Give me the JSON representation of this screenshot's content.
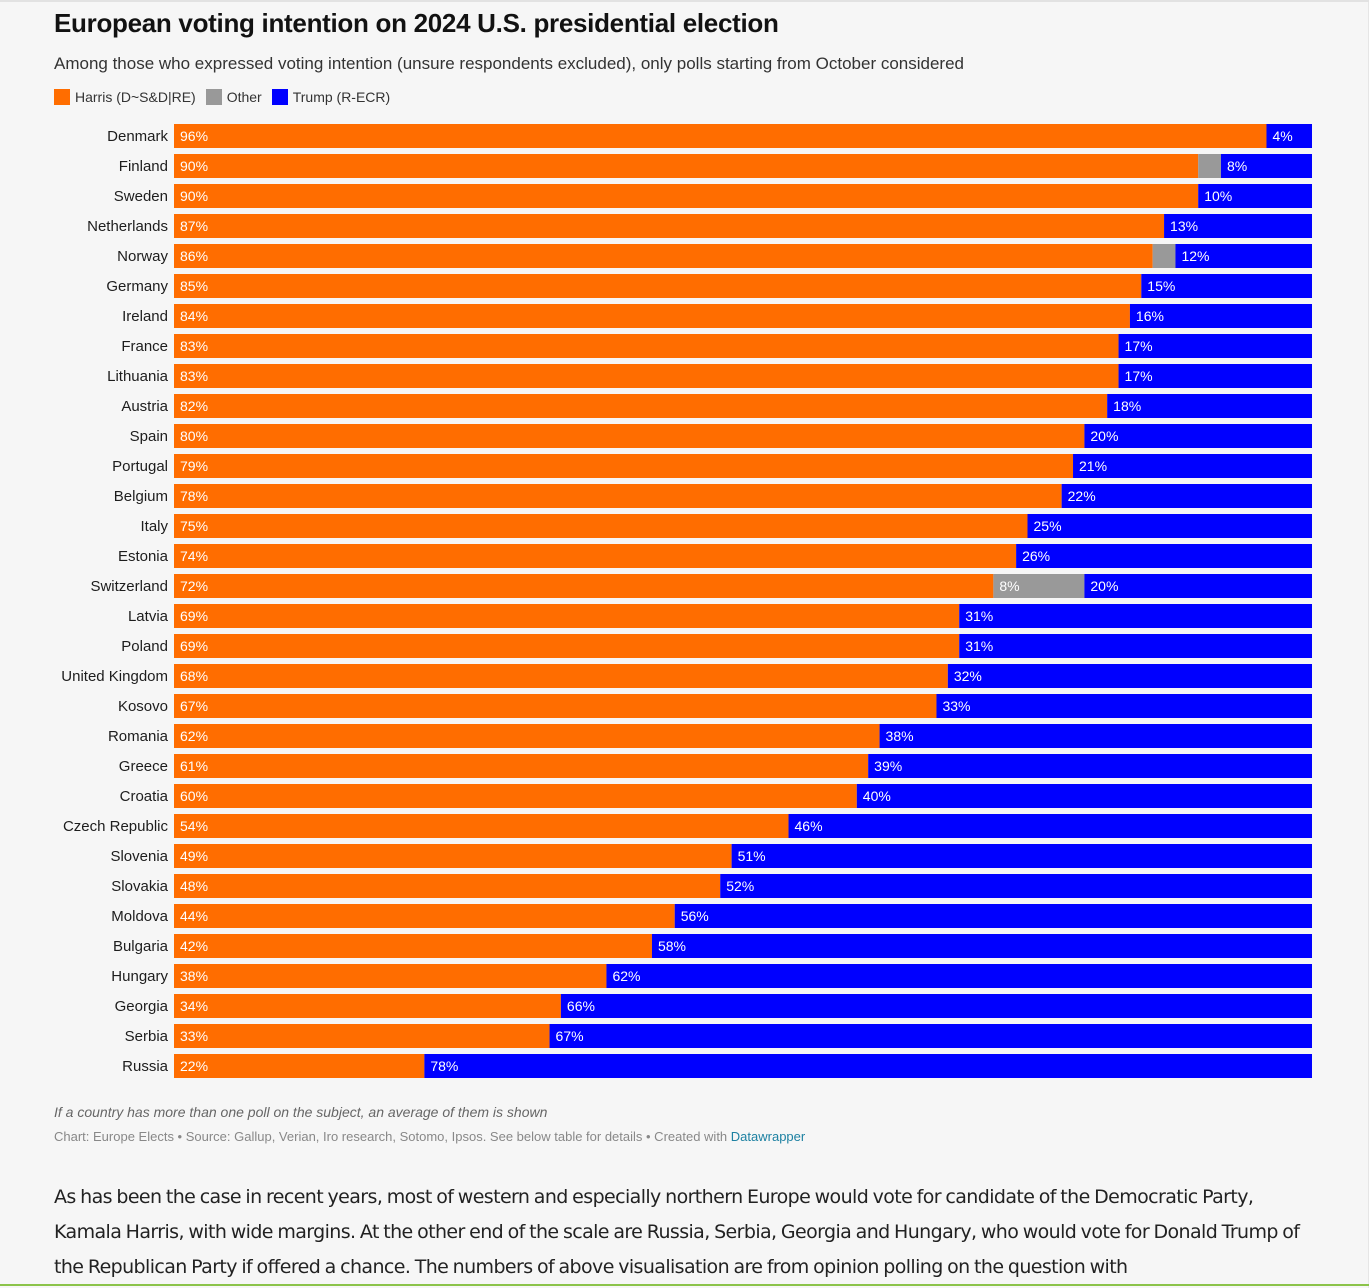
{
  "header": {
    "title": "European voting intention on 2024 U.S. presidential election",
    "subtitle": "Among those who expressed voting intention (unsure respondents excluded), only polls starting from October considered"
  },
  "legend": [
    {
      "label": "Harris (D~S&D|RE)",
      "color": "#ff6d00"
    },
    {
      "label": "Other",
      "color": "#999999"
    },
    {
      "label": "Trump (R-ECR)",
      "color": "#0000ff"
    }
  ],
  "chart_data": {
    "type": "bar",
    "orientation": "horizontal",
    "stacked": true,
    "title": "European voting intention on 2024 U.S. presidential election",
    "xlim": [
      0,
      100
    ],
    "unit": "%",
    "categories": [
      "Denmark",
      "Finland",
      "Sweden",
      "Netherlands",
      "Norway",
      "Germany",
      "Ireland",
      "France",
      "Lithuania",
      "Austria",
      "Spain",
      "Portugal",
      "Belgium",
      "Italy",
      "Estonia",
      "Switzerland",
      "Latvia",
      "Poland",
      "United Kingdom",
      "Kosovo",
      "Romania",
      "Greece",
      "Croatia",
      "Czech Republic",
      "Slovenia",
      "Slovakia",
      "Moldova",
      "Bulgaria",
      "Hungary",
      "Georgia",
      "Serbia",
      "Russia"
    ],
    "series": [
      {
        "name": "Harris (D~S&D|RE)",
        "color": "#ff6d00",
        "values": [
          96,
          90,
          90,
          87,
          86,
          85,
          84,
          83,
          83,
          82,
          80,
          79,
          78,
          75,
          74,
          72,
          69,
          69,
          68,
          67,
          62,
          61,
          60,
          54,
          49,
          48,
          44,
          42,
          38,
          34,
          33,
          22
        ]
      },
      {
        "name": "Other",
        "color": "#999999",
        "values": [
          0,
          2,
          0,
          0,
          2,
          0,
          0,
          0,
          0,
          0,
          0,
          0,
          0,
          0,
          0,
          8,
          0,
          0,
          0,
          0,
          0,
          0,
          0,
          0,
          0,
          0,
          0,
          0,
          0,
          0,
          0,
          0
        ],
        "labels_shown": [
          false,
          false,
          false,
          false,
          false,
          false,
          false,
          false,
          false,
          false,
          false,
          false,
          false,
          false,
          false,
          true,
          false,
          false,
          false,
          false,
          false,
          false,
          false,
          false,
          false,
          false,
          false,
          false,
          false,
          false,
          false,
          false
        ]
      },
      {
        "name": "Trump (R-ECR)",
        "color": "#0000ff",
        "values": [
          4,
          8,
          10,
          13,
          12,
          15,
          16,
          17,
          17,
          18,
          20,
          21,
          22,
          25,
          26,
          20,
          31,
          31,
          32,
          33,
          38,
          39,
          40,
          46,
          51,
          52,
          56,
          58,
          62,
          66,
          67,
          78
        ]
      }
    ]
  },
  "footer": {
    "note": "If a country has more than one poll on the subject, an average of them is shown",
    "credit_prefix": "Chart: Europe Elects • Source: Gallup, Verian, Iro research, Sotomo, Ipsos. See below table for details • Created with ",
    "credit_link": "Datawrapper"
  },
  "article": {
    "text": "As has been the case in recent years, most of western and especially northern Europe would vote for candidate of the Democratic Party, Kamala Harris, with wide margins. At the other end of the scale are Russia, Serbia, Georgia and Hungary, who would vote for Donald Trump of the Republican Party if offered a chance. The numbers of above visualisation are from opinion polling on the question with"
  }
}
